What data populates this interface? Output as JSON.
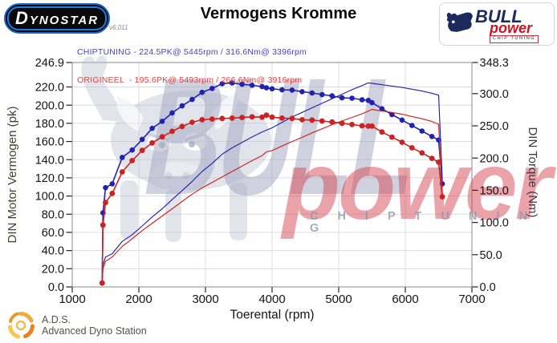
{
  "header": {
    "title": "Vermogens Kromme",
    "legend_chip": "CHIPTUNING - 224.5PK@ 5445rpm / 316.6Nm@ 3396rpm",
    "legend_orig": "ORIGINEEL  - 195.6PK@ 5493rpm / 266.6Nm@ 3916rpm",
    "dynostar_text": "DYNOSTAR",
    "dynostar_version": "v6.011",
    "bp_bull": "BULL",
    "bp_power": "power",
    "bp_chip": "CHIP TUNING"
  },
  "watermark": {
    "bull": "BULL",
    "power": "power",
    "chip": "C H I P  T U N I N G"
  },
  "footer": {
    "abbr": "A.D.S.",
    "name": "Advanced Dyno Station"
  },
  "colors": {
    "curve_blue": "#2222b2",
    "curve_red": "#cc2222",
    "legend_blue": "#4343cf",
    "legend_red": "#dd4444",
    "grid": "#dcdcdc",
    "frame": "#888888",
    "tick_text": "#141414",
    "left_axis_title": "#46402f",
    "right_axis_title": "#3b3b45"
  },
  "chart_data": {
    "type": "line",
    "title": "Vermogens Kromme",
    "xlabel": "Toerental (rpm)",
    "ylabel_left": "DIN Motor Vermogen (pk)",
    "ylabel_right": "DIN Torque (Nm)",
    "x_range": [
      1000,
      7000
    ],
    "y_left_range": [
      0,
      246.9
    ],
    "y_right_range": [
      0,
      348.3
    ],
    "x_ticks": [
      1000,
      2000,
      3000,
      4000,
      5000,
      6000,
      7000
    ],
    "y_left_ticks": [
      246.9,
      220,
      200,
      180,
      160,
      140,
      120,
      100,
      80,
      60,
      40,
      20,
      0
    ],
    "y_right_ticks": [
      348.3,
      300,
      250,
      200,
      150,
      100,
      50,
      0
    ],
    "grid": true,
    "legend_position": "top-left",
    "rpm": [
      1450,
      1462,
      1500,
      1600,
      1750,
      1900,
      2050,
      2200,
      2350,
      2500,
      2650,
      2800,
      2950,
      3100,
      3250,
      3400,
      3550,
      3700,
      3850,
      3916,
      4000,
      4150,
      4300,
      4450,
      4600,
      4750,
      4900,
      5050,
      5200,
      5350,
      5445,
      5500,
      5650,
      5800,
      5950,
      6100,
      6250,
      6400,
      6500,
      6555
    ],
    "series": [
      {
        "name": "chiptuning-power-pk",
        "axis": "left",
        "color": "#2222b2",
        "width": 1.15,
        "markers": false,
        "values": [
          3,
          24,
          33,
          36.5,
          50,
          57.5,
          67,
          77,
          86,
          96,
          106,
          116,
          127,
          136,
          146,
          153,
          159,
          165,
          170.5,
          172.5,
          175,
          181,
          187,
          192,
          197,
          202,
          207,
          212,
          217,
          221.5,
          224.5,
          224,
          222.5,
          221,
          219.5,
          217.5,
          215.5,
          213,
          211,
          118
        ]
      },
      {
        "name": "chiptuning-torque-nm",
        "axis": "right",
        "color": "#2222b2",
        "width": 1.6,
        "markers": true,
        "marker_r": 3.3,
        "values": [
          6,
          115,
          154,
          160,
          201,
          212.5,
          229,
          246,
          257,
          270,
          281,
          291,
          302,
          308,
          315.5,
          316.6,
          314.5,
          313,
          311,
          309,
          307.5,
          306,
          305.5,
          303,
          301,
          298.5,
          296.5,
          293.5,
          293,
          290.5,
          289.5,
          286,
          276.5,
          267.5,
          259,
          250.5,
          242,
          233.5,
          228,
          160
        ]
      },
      {
        "name": "origineel-power-pk",
        "axis": "left",
        "color": "#cc2222",
        "width": 1.15,
        "markers": false,
        "values": [
          3,
          20,
          28,
          33,
          44.5,
          53,
          62,
          70,
          78,
          86,
          94,
          102,
          109,
          115,
          121,
          127,
          133,
          139,
          144.5,
          148.7,
          150,
          155,
          160,
          164.5,
          169.5,
          174,
          178.5,
          182.5,
          186.5,
          190.5,
          193.5,
          195.3,
          193.5,
          192,
          190,
          187.5,
          185,
          182,
          179,
          98
        ]
      },
      {
        "name": "origineel-torque-nm",
        "axis": "right",
        "color": "#cc2222",
        "width": 1.6,
        "markers": true,
        "marker_r": 3.4,
        "values": [
          6,
          96,
          131,
          145,
          178.5,
          196,
          212,
          223.5,
          233,
          241.5,
          249,
          255.5,
          259.5,
          260.5,
          261.5,
          262,
          263,
          264,
          263.5,
          266.6,
          263.5,
          262,
          261.5,
          259.5,
          259,
          257.5,
          256,
          254,
          252,
          250,
          249.5,
          249.5,
          240.5,
          232.5,
          224.5,
          216,
          208,
          199.5,
          193.5,
          140
        ]
      }
    ],
    "peaks": {
      "chiptuning": {
        "power_pk": 224.5,
        "power_rpm": 5445,
        "torque_nm": 316.6,
        "torque_rpm": 3396
      },
      "origineel": {
        "power_pk": 195.6,
        "power_rpm": 5493,
        "torque_nm": 266.6,
        "torque_rpm": 3916
      }
    }
  }
}
